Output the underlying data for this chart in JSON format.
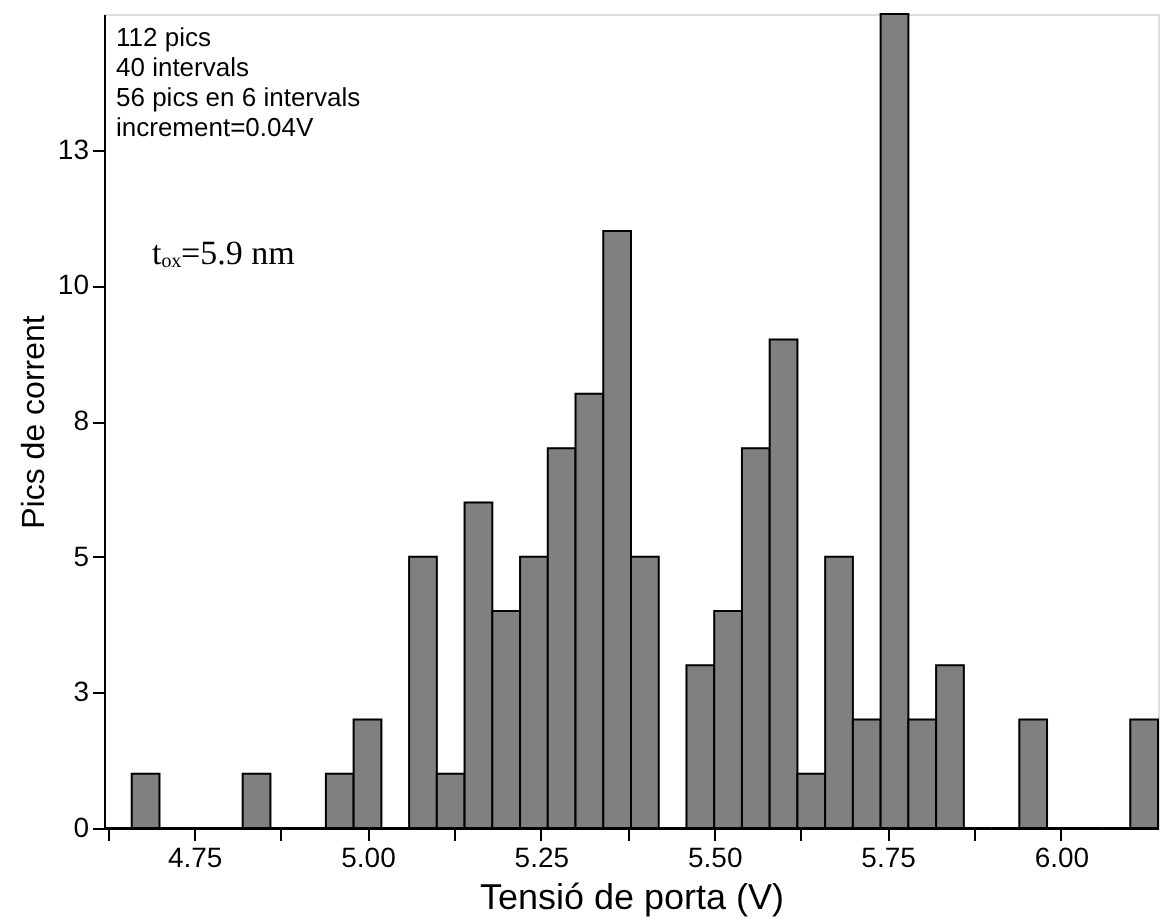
{
  "chart_data": {
    "type": "histogram",
    "xlabel": "Tensió de porta (V)",
    "ylabel": "Pics de corrent",
    "bins": [
      4.62,
      4.66,
      4.7,
      4.74,
      4.78,
      4.82,
      4.86,
      4.9,
      4.94,
      4.98,
      5.02,
      5.06,
      5.1,
      5.14,
      5.18,
      5.22,
      5.26,
      5.3,
      5.34,
      5.38,
      5.42,
      5.46,
      5.5,
      5.54,
      5.58,
      5.62,
      5.66,
      5.7,
      5.74,
      5.78,
      5.82,
      5.86,
      5.9,
      5.94,
      5.98,
      6.02,
      6.06,
      6.1,
      6.14
    ],
    "values": [
      0,
      1,
      0,
      0,
      0,
      1,
      0,
      0,
      1,
      2,
      0,
      5,
      1,
      6,
      4,
      5,
      7,
      8,
      11,
      5,
      0,
      3,
      4,
      7,
      9,
      1,
      5,
      2,
      15,
      2,
      3,
      0,
      0,
      2,
      0,
      0,
      0,
      2
    ],
    "color": "#808080",
    "xlim": [
      4.62,
      6.14
    ],
    "xticks": [
      {
        "value": 4.625,
        "label": null
      },
      4.75,
      {
        "value": 4.875,
        "label": null
      },
      {
        "value": 5.0,
        "label": "5.00"
      },
      {
        "value": 5.125,
        "label": null
      },
      5.25,
      {
        "value": 5.375,
        "label": null
      },
      {
        "value": 5.5,
        "label": "5.50"
      },
      {
        "value": 5.625,
        "label": null
      },
      5.75,
      {
        "value": 5.875,
        "label": null
      },
      {
        "value": 6.0,
        "label": "6.00"
      }
    ],
    "ylim": [
      0,
      15
    ],
    "yticks": [
      0,
      {
        "value": 2.5,
        "label": "3"
      },
      5,
      {
        "value": 7.5,
        "label": "8"
      },
      10,
      {
        "value": 12.5,
        "label": "13"
      }
    ],
    "grid": false,
    "annotations": [
      "112 pics",
      "40 intervals",
      "56 pics en 6 intervals",
      "increment=0.04V",
      "tₒₓ=5.9 nm"
    ]
  }
}
